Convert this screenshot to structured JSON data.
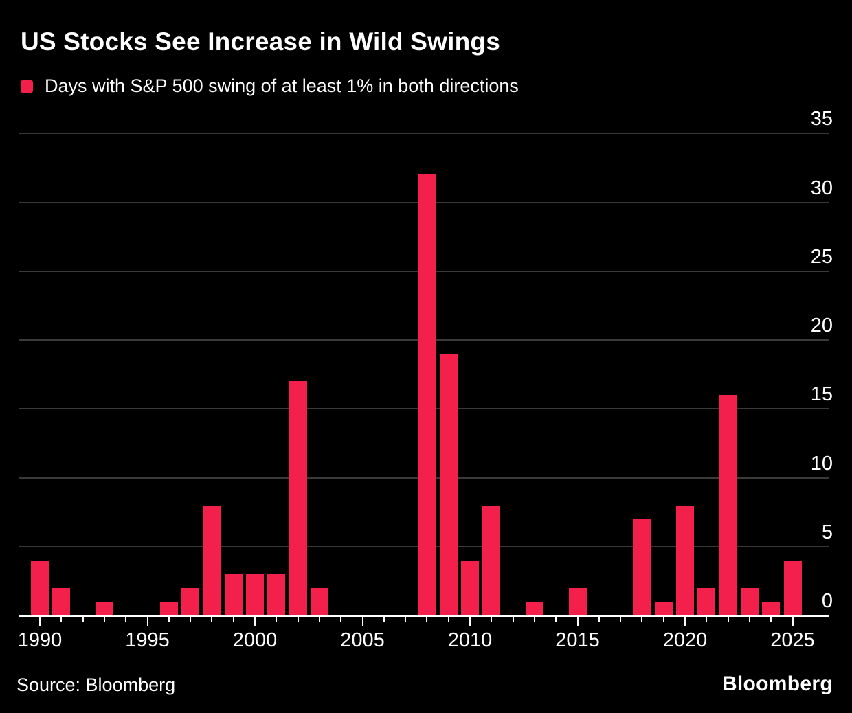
{
  "header": {
    "title": "US Stocks See Increase in Wild Swings",
    "legend_label": "Days with S&P 500 swing of at least 1% in both directions"
  },
  "footer": {
    "source": "Source: Bloomberg",
    "brand": "Bloomberg"
  },
  "colors": {
    "background": "#000000",
    "bar": "#F4204C",
    "grid": "#3A3A3A",
    "axis": "#FFFFFF",
    "text": "#FFFFFF"
  },
  "chart_data": {
    "type": "bar",
    "title": "US Stocks See Increase in Wild Swings",
    "series_label": "Days with S&P 500 swing of at least 1% in both directions",
    "x": [
      1990,
      1991,
      1992,
      1993,
      1994,
      1995,
      1996,
      1997,
      1998,
      1999,
      2000,
      2001,
      2002,
      2003,
      2004,
      2005,
      2006,
      2007,
      2008,
      2009,
      2010,
      2011,
      2012,
      2013,
      2014,
      2015,
      2016,
      2017,
      2018,
      2019,
      2020,
      2021,
      2022,
      2023,
      2024,
      2025
    ],
    "values": [
      4,
      2,
      0,
      1,
      0,
      0,
      1,
      2,
      8,
      3,
      3,
      3,
      17,
      2,
      0,
      0,
      0,
      0,
      32,
      19,
      4,
      8,
      0,
      1,
      0,
      2,
      0,
      0,
      7,
      1,
      8,
      2,
      16,
      2,
      1,
      4
    ],
    "yticks": [
      0,
      5,
      10,
      15,
      20,
      25,
      30,
      35
    ],
    "ylim": [
      0,
      35
    ],
    "xtick_labels": [
      "1990",
      "1995",
      "2000",
      "2005",
      "2010",
      "2015",
      "2020",
      "2025"
    ],
    "grid": "horizontal",
    "legend_position": "top-left",
    "ylabel_side": "right",
    "xlabel": "",
    "ylabel": ""
  }
}
